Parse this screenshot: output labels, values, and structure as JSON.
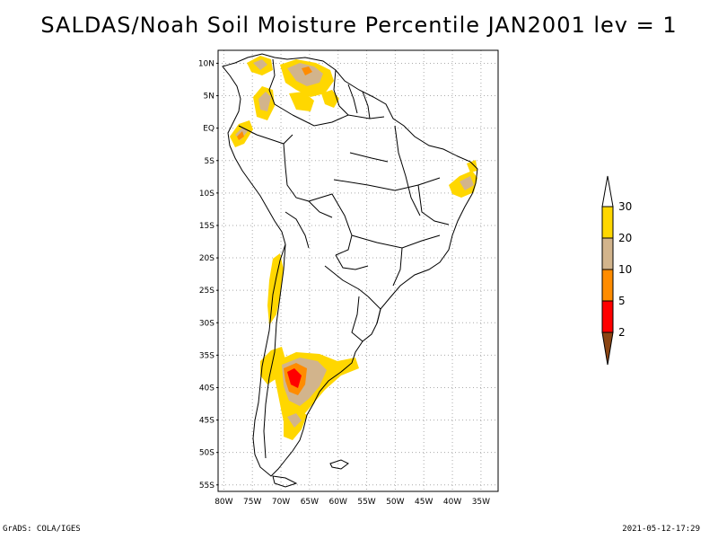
{
  "title": "SALDAS/Noah Soil Moisture Percentile JAN2001 lev = 1",
  "footer": {
    "left": "GrADS: COLA/IGES",
    "right": "2021-05-12-17:29"
  },
  "map": {
    "lat_labels": [
      "10N",
      "5N",
      "EQ",
      "5S",
      "10S",
      "15S",
      "20S",
      "25S",
      "30S",
      "35S",
      "40S",
      "45S",
      "50S",
      "55S"
    ],
    "lon_labels": [
      "80W",
      "75W",
      "70W",
      "65W",
      "60W",
      "55W",
      "50W",
      "45W",
      "40W",
      "35W"
    ]
  },
  "legend": {
    "labels": [
      "30",
      "20",
      "10",
      "5",
      "2"
    ],
    "colors": {
      "above_30": "#ffffff",
      "20_30": "#ffd700",
      "10_20": "#d2b48c",
      "5_10": "#ff8c00",
      "2_5": "#ff0000",
      "below_2": "#8b4513"
    }
  },
  "colors": {
    "frame": "#000000",
    "grid": "#aaaaaa"
  }
}
